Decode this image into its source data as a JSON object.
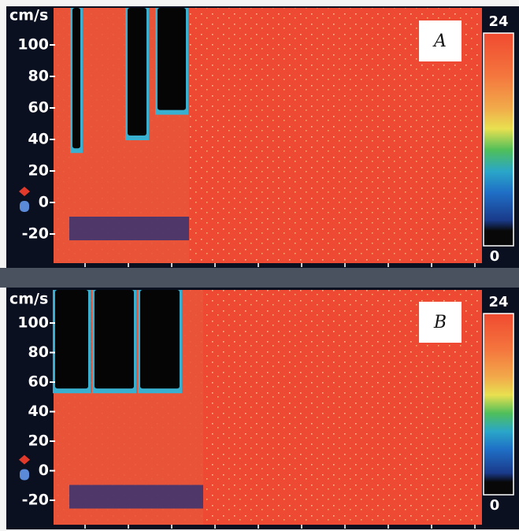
{
  "panels": [
    {
      "label": "A",
      "y_axis": {
        "unit": "cm/s",
        "ticks": [
          "100",
          "80",
          "60",
          "40",
          "20",
          "0",
          "-20"
        ]
      },
      "color_scale": {
        "max": "24",
        "min": "0"
      }
    },
    {
      "label": "B",
      "y_axis": {
        "unit": "cm/s",
        "ticks": [
          "100",
          "80",
          "60",
          "40",
          "20",
          "0",
          "-20"
        ]
      },
      "color_scale": {
        "max": "24",
        "min": "0"
      }
    }
  ]
}
